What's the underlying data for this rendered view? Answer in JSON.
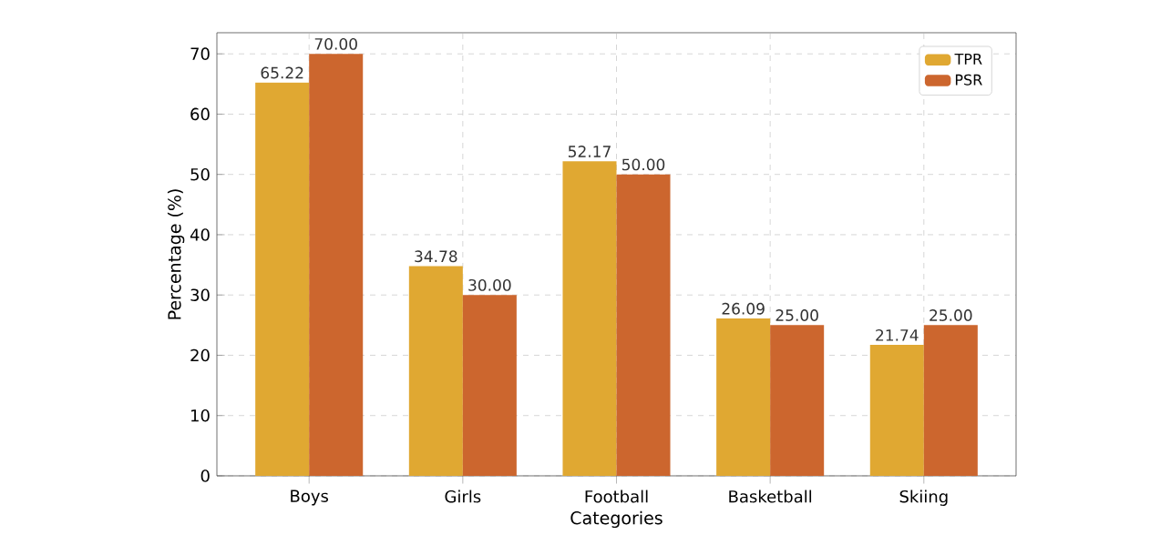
{
  "chart_data": {
    "type": "bar",
    "xlabel": "Categories",
    "ylabel": "Percentage (%)",
    "categories": [
      "Boys",
      "Girls",
      "Football",
      "Basketball",
      "Skiing"
    ],
    "series": [
      {
        "name": "TPR",
        "color": "#e0a832",
        "values": [
          65.22,
          34.78,
          52.17,
          26.09,
          21.74
        ],
        "value_labels": [
          "65.22",
          "34.78",
          "52.17",
          "26.09",
          "21.74"
        ]
      },
      {
        "name": "PSR",
        "color": "#cc662e",
        "values": [
          70.0,
          30.0,
          50.0,
          25.0,
          25.0
        ],
        "value_labels": [
          "70.00",
          "30.00",
          "50.00",
          "25.00",
          "25.00"
        ]
      }
    ],
    "ylim": [
      0,
      73.5
    ],
    "yticks": [
      0,
      10,
      20,
      30,
      40,
      50,
      60,
      70
    ],
    "grid": true,
    "legend": "top right"
  }
}
